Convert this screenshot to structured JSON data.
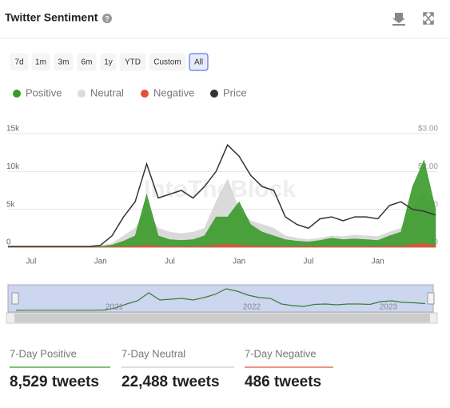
{
  "header": {
    "title": "Twitter Sentiment"
  },
  "ranges": [
    "7d",
    "1m",
    "3m",
    "6m",
    "1y",
    "YTD",
    "Custom",
    "All"
  ],
  "watermark": "IntoTheBlock",
  "chart_data": {
    "type": "area",
    "categories": [
      null,
      null,
      "Jul",
      null,
      null,
      null,
      null,
      null,
      "Jan",
      null,
      null,
      null,
      null,
      null,
      "Jul",
      null,
      null,
      null,
      null,
      null,
      "Jan",
      null,
      null,
      null,
      null,
      null,
      "Jul",
      null,
      null,
      null,
      null,
      null,
      "Jan",
      null,
      null,
      null,
      null,
      null
    ],
    "series": [
      {
        "name": "Neutral",
        "color": "#d6d6d6",
        "values": [
          100,
          100,
          100,
          100,
          100,
          100,
          100,
          100,
          200,
          500,
          1500,
          2500,
          5000,
          2500,
          2000,
          1800,
          2000,
          2500,
          6000,
          9000,
          5000,
          3500,
          3000,
          2500,
          1500,
          1200,
          1000,
          1200,
          1500,
          1400,
          1600,
          1500,
          1400,
          2000,
          2500,
          5000,
          7000,
          4000
        ]
      },
      {
        "name": "Positive",
        "color": "#3a9a2a",
        "values": [
          50,
          50,
          50,
          50,
          50,
          50,
          50,
          50,
          100,
          300,
          800,
          1500,
          7000,
          1500,
          1000,
          900,
          1000,
          1500,
          4000,
          4000,
          6000,
          3000,
          2000,
          1500,
          1000,
          800,
          700,
          900,
          1200,
          1000,
          1100,
          1000,
          900,
          1500,
          2000,
          8000,
          11500,
          5000
        ]
      },
      {
        "name": "Negative",
        "color": "#e0533a",
        "values": [
          0,
          0,
          0,
          0,
          0,
          0,
          0,
          0,
          20,
          50,
          100,
          150,
          300,
          150,
          100,
          100,
          100,
          150,
          300,
          400,
          300,
          200,
          150,
          150,
          100,
          100,
          100,
          100,
          100,
          100,
          100,
          100,
          100,
          150,
          150,
          400,
          500,
          300
        ]
      },
      {
        "name": "Price",
        "color": "#333333",
        "axis": "y2",
        "values": [
          0.02,
          0.02,
          0.02,
          0.02,
          0.02,
          0.02,
          0.02,
          0.02,
          0.05,
          0.3,
          0.8,
          1.2,
          2.2,
          1.3,
          1.4,
          1.5,
          1.3,
          1.6,
          2.0,
          2.7,
          2.4,
          1.9,
          1.6,
          1.5,
          0.8,
          0.6,
          0.5,
          0.75,
          0.8,
          0.7,
          0.8,
          0.8,
          0.75,
          1.1,
          1.2,
          1.0,
          0.95,
          0.85
        ]
      }
    ],
    "ylim": [
      0,
      15000
    ],
    "yticks": [
      0,
      {
        "value": 5000,
        "label": "5k"
      },
      {
        "value": 10000,
        "label": "10k"
      },
      {
        "value": 15000,
        "label": "15k"
      }
    ],
    "y2lim": [
      0,
      3
    ],
    "y2ticks": [
      {
        "value": 0,
        "label": "$0.00"
      },
      {
        "value": 1,
        "label": "$1.00"
      },
      {
        "value": 2,
        "label": "$2.00"
      },
      {
        "value": 3,
        "label": "$3.00"
      }
    ],
    "grid": true,
    "legend": "top"
  },
  "navigator": {
    "labels": [
      "2021",
      "2022",
      "2023"
    ]
  },
  "stats": [
    {
      "label": "7-Day Positive",
      "value": "8,529 tweets",
      "color": "#3a9a2a"
    },
    {
      "label": "7-Day Neutral",
      "value": "22,488 tweets",
      "color": "#cccccc"
    },
    {
      "label": "7-Day Negative",
      "value": "486 tweets",
      "color": "#e0533a"
    }
  ]
}
